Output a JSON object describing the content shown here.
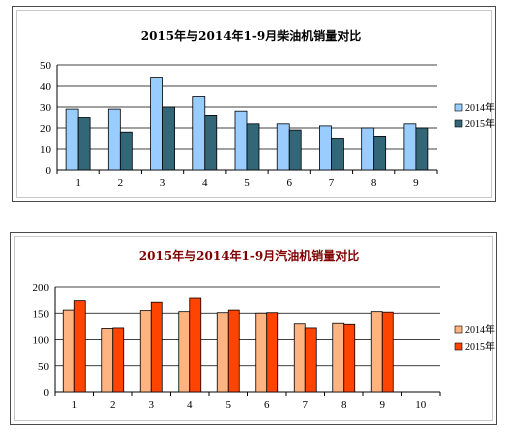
{
  "chart_data": [
    {
      "type": "bar",
      "title": "2015年与2014年1-9月柴油机销量对比",
      "categories": [
        "1",
        "2",
        "3",
        "4",
        "5",
        "6",
        "7",
        "8",
        "9"
      ],
      "series": [
        {
          "name": "2014年",
          "values": [
            29,
            29,
            44,
            35,
            28,
            22,
            21,
            20,
            22
          ],
          "color": "#99ccff"
        },
        {
          "name": "2015年",
          "values": [
            25,
            18,
            30,
            26,
            22,
            19,
            15,
            16,
            20
          ],
          "color": "#336677"
        }
      ],
      "yticks": [
        "0",
        "10",
        "20",
        "30",
        "40",
        "50"
      ],
      "ylim": [
        0,
        50
      ],
      "grid": true,
      "legend_position": "right",
      "title_color": "#000000"
    },
    {
      "type": "bar",
      "title": "2015年与2014年1-9月汽油机销量对比",
      "categories": [
        "1",
        "2",
        "3",
        "4",
        "5",
        "6",
        "7",
        "8",
        "9",
        "10"
      ],
      "series": [
        {
          "name": "2014年",
          "values": [
            156,
            121,
            155,
            153,
            151,
            150,
            130,
            131,
            153,
            null
          ],
          "color": "#ffb380"
        },
        {
          "name": "2015年",
          "values": [
            174,
            122,
            171,
            179,
            156,
            151,
            122,
            129,
            152,
            null
          ],
          "color": "#ff4400"
        }
      ],
      "yticks": [
        "0",
        "50",
        "100",
        "150",
        "200"
      ],
      "ylim": [
        0,
        200
      ],
      "grid": true,
      "legend_position": "right",
      "title_color": "#800000"
    }
  ]
}
